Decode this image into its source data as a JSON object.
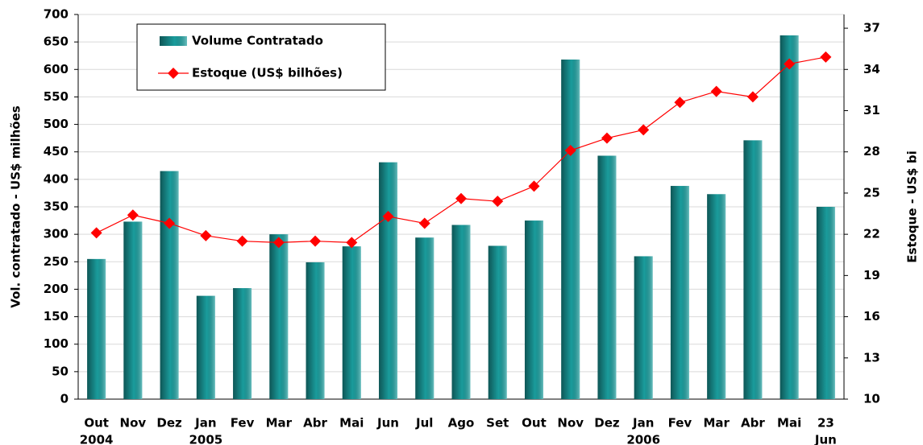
{
  "chart_data": {
    "type": "bar_line",
    "categories": [
      "Out",
      "Nov",
      "Dez",
      "Jan",
      "Fev",
      "Mar",
      "Abr",
      "Mai",
      "Jun",
      "Jul",
      "Ago",
      "Set",
      "Out",
      "Nov",
      "Dez",
      "Jan",
      "Fev",
      "Mar",
      "Abr",
      "Mai",
      "23"
    ],
    "category_sublabels": [
      "2004",
      null,
      null,
      "2005",
      null,
      null,
      null,
      null,
      null,
      null,
      null,
      null,
      null,
      null,
      null,
      "2006",
      null,
      null,
      null,
      null,
      "Jun"
    ],
    "series": [
      {
        "name": "Volume Contratado",
        "type": "bar",
        "color": "#1a9c9c",
        "values": [
          255,
          323,
          415,
          188,
          202,
          300,
          249,
          278,
          431,
          294,
          317,
          279,
          325,
          618,
          443,
          260,
          388,
          373,
          471,
          662,
          350
        ]
      },
      {
        "name": "Estoque (US$ bilhões)",
        "type": "line",
        "axis": "y2",
        "color": "#ff0000",
        "values": [
          22.1,
          23.4,
          22.8,
          21.9,
          21.5,
          21.4,
          21.5,
          21.4,
          23.3,
          22.8,
          24.6,
          24.4,
          25.5,
          28.1,
          29.0,
          29.6,
          31.6,
          32.4,
          32.0,
          34.4,
          34.9
        ]
      }
    ],
    "ylabel": "Vol. contratado - US$ milhões",
    "y2label": "Estoque - US$ bi",
    "ylim": [
      0,
      700
    ],
    "yticks": [
      0,
      50,
      100,
      150,
      200,
      250,
      300,
      350,
      400,
      450,
      500,
      550,
      600,
      650,
      700
    ],
    "y2lim": [
      10,
      38
    ],
    "y2ticks": [
      10,
      13,
      16,
      19,
      22,
      25,
      28,
      31,
      34,
      37
    ],
    "grid": true
  }
}
